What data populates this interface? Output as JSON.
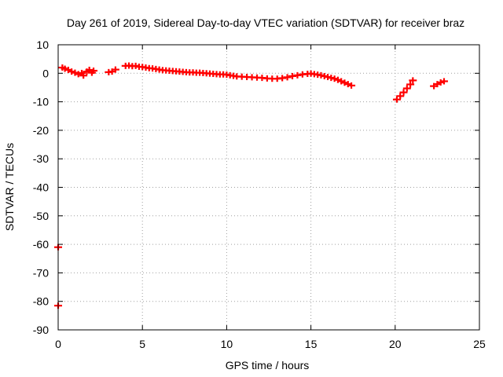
{
  "chart_data": {
    "type": "scatter",
    "title": "Day 261 of 2019, Sidereal Day-to-day VTEC variation (SDTVAR) for receiver braz",
    "xlabel": "GPS time / hours",
    "ylabel": "SDTVAR / TECUs",
    "xlim": [
      0,
      25
    ],
    "ylim": [
      -90,
      10
    ],
    "xticks": [
      0,
      5,
      10,
      15,
      20,
      25
    ],
    "yticks": [
      10,
      0,
      -10,
      -20,
      -30,
      -40,
      -50,
      -60,
      -70,
      -80,
      -90
    ],
    "grid": true,
    "marker": "+",
    "series": [
      {
        "name": "SDTVAR",
        "color": "#ff0000",
        "x": [
          0.0,
          0.0,
          0.25,
          0.4,
          0.6,
          0.8,
          1.0,
          1.2,
          1.4,
          1.5,
          1.7,
          1.85,
          2.0,
          2.1,
          3.0,
          3.2,
          3.4,
          4.0,
          4.2,
          4.4,
          4.6,
          4.8,
          5.0,
          5.2,
          5.4,
          5.6,
          5.8,
          6.0,
          6.2,
          6.4,
          6.6,
          6.8,
          7.0,
          7.2,
          7.4,
          7.6,
          7.8,
          8.0,
          8.2,
          8.4,
          8.6,
          8.8,
          9.0,
          9.2,
          9.4,
          9.6,
          9.8,
          10.0,
          10.2,
          10.4,
          10.6,
          10.9,
          11.2,
          11.5,
          11.8,
          12.1,
          12.4,
          12.7,
          13.0,
          13.3,
          13.6,
          13.9,
          14.2,
          14.5,
          14.8,
          15.0,
          15.2,
          15.4,
          15.6,
          15.8,
          16.0,
          16.2,
          16.4,
          16.6,
          16.8,
          17.0,
          17.2,
          17.4,
          20.1,
          20.3,
          20.5,
          20.7,
          20.9,
          21.05,
          22.3,
          22.5,
          22.7,
          22.9
        ],
        "y": [
          -61.0,
          -81.5,
          2.0,
          1.6,
          1.2,
          0.6,
          0.2,
          -0.3,
          0.1,
          -0.8,
          0.6,
          1.2,
          0.2,
          0.9,
          0.4,
          0.6,
          1.3,
          2.6,
          2.7,
          2.5,
          2.6,
          2.3,
          2.2,
          2.0,
          1.8,
          1.7,
          1.5,
          1.3,
          1.1,
          1.0,
          0.9,
          0.8,
          0.7,
          0.6,
          0.5,
          0.4,
          0.3,
          0.3,
          0.2,
          0.2,
          0.1,
          0.0,
          -0.1,
          -0.2,
          -0.3,
          -0.4,
          -0.4,
          -0.5,
          -0.7,
          -0.9,
          -1.1,
          -1.2,
          -1.3,
          -1.4,
          -1.5,
          -1.6,
          -1.8,
          -1.9,
          -1.9,
          -1.7,
          -1.4,
          -1.0,
          -0.7,
          -0.4,
          -0.2,
          -0.1,
          -0.3,
          -0.5,
          -0.7,
          -1.0,
          -1.3,
          -1.6,
          -1.9,
          -2.3,
          -2.8,
          -3.3,
          -3.8,
          -4.3,
          -9.2,
          -8.0,
          -6.7,
          -5.3,
          -3.9,
          -2.5,
          -4.5,
          -3.8,
          -3.2,
          -2.8
        ]
      }
    ]
  }
}
